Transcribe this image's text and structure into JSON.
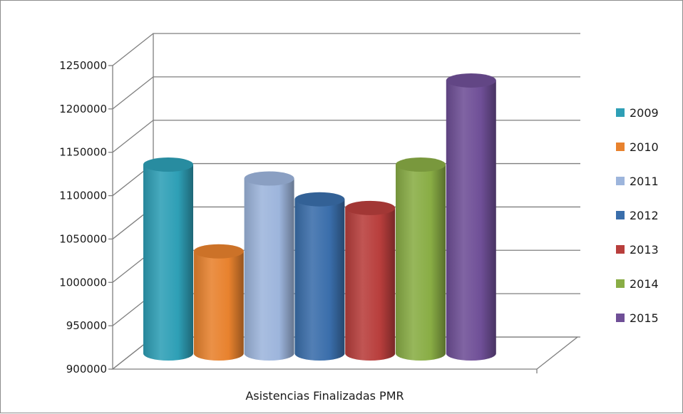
{
  "chart_data": {
    "type": "bar",
    "style": "3d-cylinder",
    "categories": [
      "Asistencias Finalizadas PMR"
    ],
    "series": [
      {
        "name": "2009",
        "values": [
          1121000
        ],
        "color": "#2e9fb6"
      },
      {
        "name": "2010",
        "values": [
          1021000
        ],
        "color": "#e8822e"
      },
      {
        "name": "2011",
        "values": [
          1105000
        ],
        "color": "#9db5dc"
      },
      {
        "name": "2012",
        "values": [
          1081000
        ],
        "color": "#3a6eab"
      },
      {
        "name": "2013",
        "values": [
          1071000
        ],
        "color": "#b83e3c"
      },
      {
        "name": "2014",
        "values": [
          1121000
        ],
        "color": "#89ad45"
      },
      {
        "name": "2015",
        "values": [
          1218000
        ],
        "color": "#6f4f97"
      }
    ],
    "ylim": [
      900000,
      1250000
    ],
    "yticks": [
      "900000",
      "950000",
      "1000000",
      "1050000",
      "1100000",
      "1150000",
      "1200000",
      "1250000"
    ],
    "xlabel": "",
    "ylabel": "",
    "title": "",
    "grid": true,
    "legend": "right"
  }
}
